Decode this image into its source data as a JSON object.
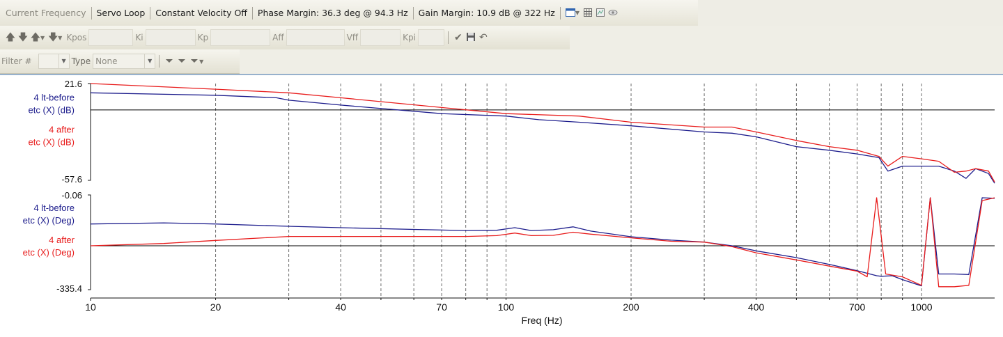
{
  "toolbar1": {
    "current_frequency": "Current Frequency",
    "servo_loop": "Servo Loop",
    "constant_velocity": "Constant Velocity Off",
    "phase_margin": "Phase Margin: 36.3 deg @ 94.3 Hz",
    "gain_margin": "Gain Margin: 10.9 dB @ 322 Hz",
    "icons": [
      "window-icon",
      "grid-icon",
      "chart-settings-icon",
      "eye-icon"
    ]
  },
  "toolbar2": {
    "arrows": [
      "arrow-up-icon",
      "arrow-down-icon",
      "arrow-up-dropdown-icon",
      "arrow-down-dropdown-icon"
    ],
    "kpos": "Kpos",
    "ki": "Ki",
    "kp": "Kp",
    "aff": "Aff",
    "vff": "Vff",
    "kpi": "Kpi",
    "actions": [
      "checkmark-icon",
      "save-icon",
      "undo-icon"
    ]
  },
  "toolbar3": {
    "filter_label": "Filter #",
    "filter_value": "",
    "type_label": "Type",
    "type_value": "None",
    "icons": [
      "filter-icon",
      "filter-clear-icon",
      "filter-dropdown-icon"
    ]
  },
  "chart_data": {
    "type": "line",
    "xlabel": "Freq (Hz)",
    "x_scale": "log",
    "xlim": [
      10,
      1500
    ],
    "x_ticks": [
      10,
      20,
      40,
      70,
      100,
      200,
      400,
      700,
      1000
    ],
    "x_tick_labels": [
      "10",
      "20",
      "40",
      "70",
      "100",
      "200",
      "400",
      "700",
      "1000"
    ],
    "grid": "vertical dashed",
    "panels": [
      {
        "name": "magnitude",
        "ylim": [
          -57.6,
          21.6
        ],
        "y_top_label": "21.6",
        "y_bottom_label": "-57.6",
        "reference_line": 0,
        "series_labels": [
          "4 lt-before etc (X) (dB)",
          "4 after etc (X) (dB)"
        ],
        "series": [
          {
            "color": "#1c1c8c",
            "x": [
              10,
              20,
              28,
              30,
              40,
              70,
              100,
              120,
              150,
              200,
              300,
              350,
              400,
              500,
              600,
              700,
              790,
              830,
              900,
              1000,
              1100,
              1200,
              1280,
              1350,
              1450,
              1500
            ],
            "y": [
              14,
              12,
              10,
              8,
              4,
              -3,
              -5,
              -8,
              -10,
              -13,
              -18,
              -19,
              -22,
              -30,
              -33,
              -36,
              -39,
              -50,
              -46,
              -46,
              -46,
              -50,
              -56,
              -48,
              -52,
              -60
            ]
          },
          {
            "color": "#e81c1c",
            "x": [
              10,
              20,
              30,
              40,
              70,
              100,
              150,
              200,
              300,
              350,
              400,
              500,
              600,
              700,
              790,
              830,
              900,
              1000,
              1100,
              1200,
              1280,
              1350,
              1450,
              1500
            ],
            "y": [
              21.6,
              17,
              14,
              10,
              2,
              -3,
              -5,
              -10,
              -14,
              -14,
              -18,
              -25,
              -30,
              -33,
              -38,
              -46,
              -38,
              -40,
              -42,
              -51,
              -50,
              -48,
              -50,
              -59
            ]
          }
        ]
      },
      {
        "name": "phase",
        "ylim": [
          -335.4,
          -0.06
        ],
        "y_top_label": "-0.06",
        "y_bottom_label": "-335.4",
        "reference_line": -180,
        "series_labels": [
          "4 lt-before etc (X) (Deg)",
          "4 after etc (X) (Deg)"
        ],
        "series": [
          {
            "color": "#1c1c8c",
            "x": [
              10,
              15,
              20,
              30,
              40,
              60,
              80,
              95,
              105,
              115,
              130,
              145,
              160,
              200,
              250,
              300,
              350,
              400,
              500,
              600,
              700,
              780,
              800,
              850,
              900,
              1000,
              1050,
              1100,
              1200,
              1300,
              1400,
              1500
            ],
            "y": [
              -103,
              -99,
              -103,
              -111,
              -116,
              -122,
              -126,
              -125,
              -116,
              -126,
              -123,
              -113,
              -128,
              -148,
              -160,
              -167,
              -180,
              -198,
              -222,
              -246,
              -268,
              -286,
              -288,
              -286,
              -300,
              -322,
              -10,
              -280,
              -280,
              -282,
              -10,
              -12
            ]
          },
          {
            "color": "#e81c1c",
            "x": [
              10,
              15,
              20,
              30,
              40,
              60,
              80,
              95,
              105,
              115,
              130,
              145,
              160,
              200,
              250,
              300,
              350,
              400,
              500,
              600,
              700,
              740,
              780,
              820,
              900,
              1000,
              1050,
              1100,
              1200,
              1300,
              1400,
              1500
            ],
            "y": [
              -180,
              -172,
              -161,
              -147,
              -147,
              -147,
              -147,
              -144,
              -135,
              -144,
              -143,
              -132,
              -139,
              -152,
              -164,
              -167,
              -183,
              -205,
              -230,
              -252,
              -270,
              -290,
              -10,
              -280,
              -290,
              -320,
              -10,
              -325,
              -325,
              -320,
              -20,
              -10
            ]
          }
        ]
      }
    ]
  }
}
